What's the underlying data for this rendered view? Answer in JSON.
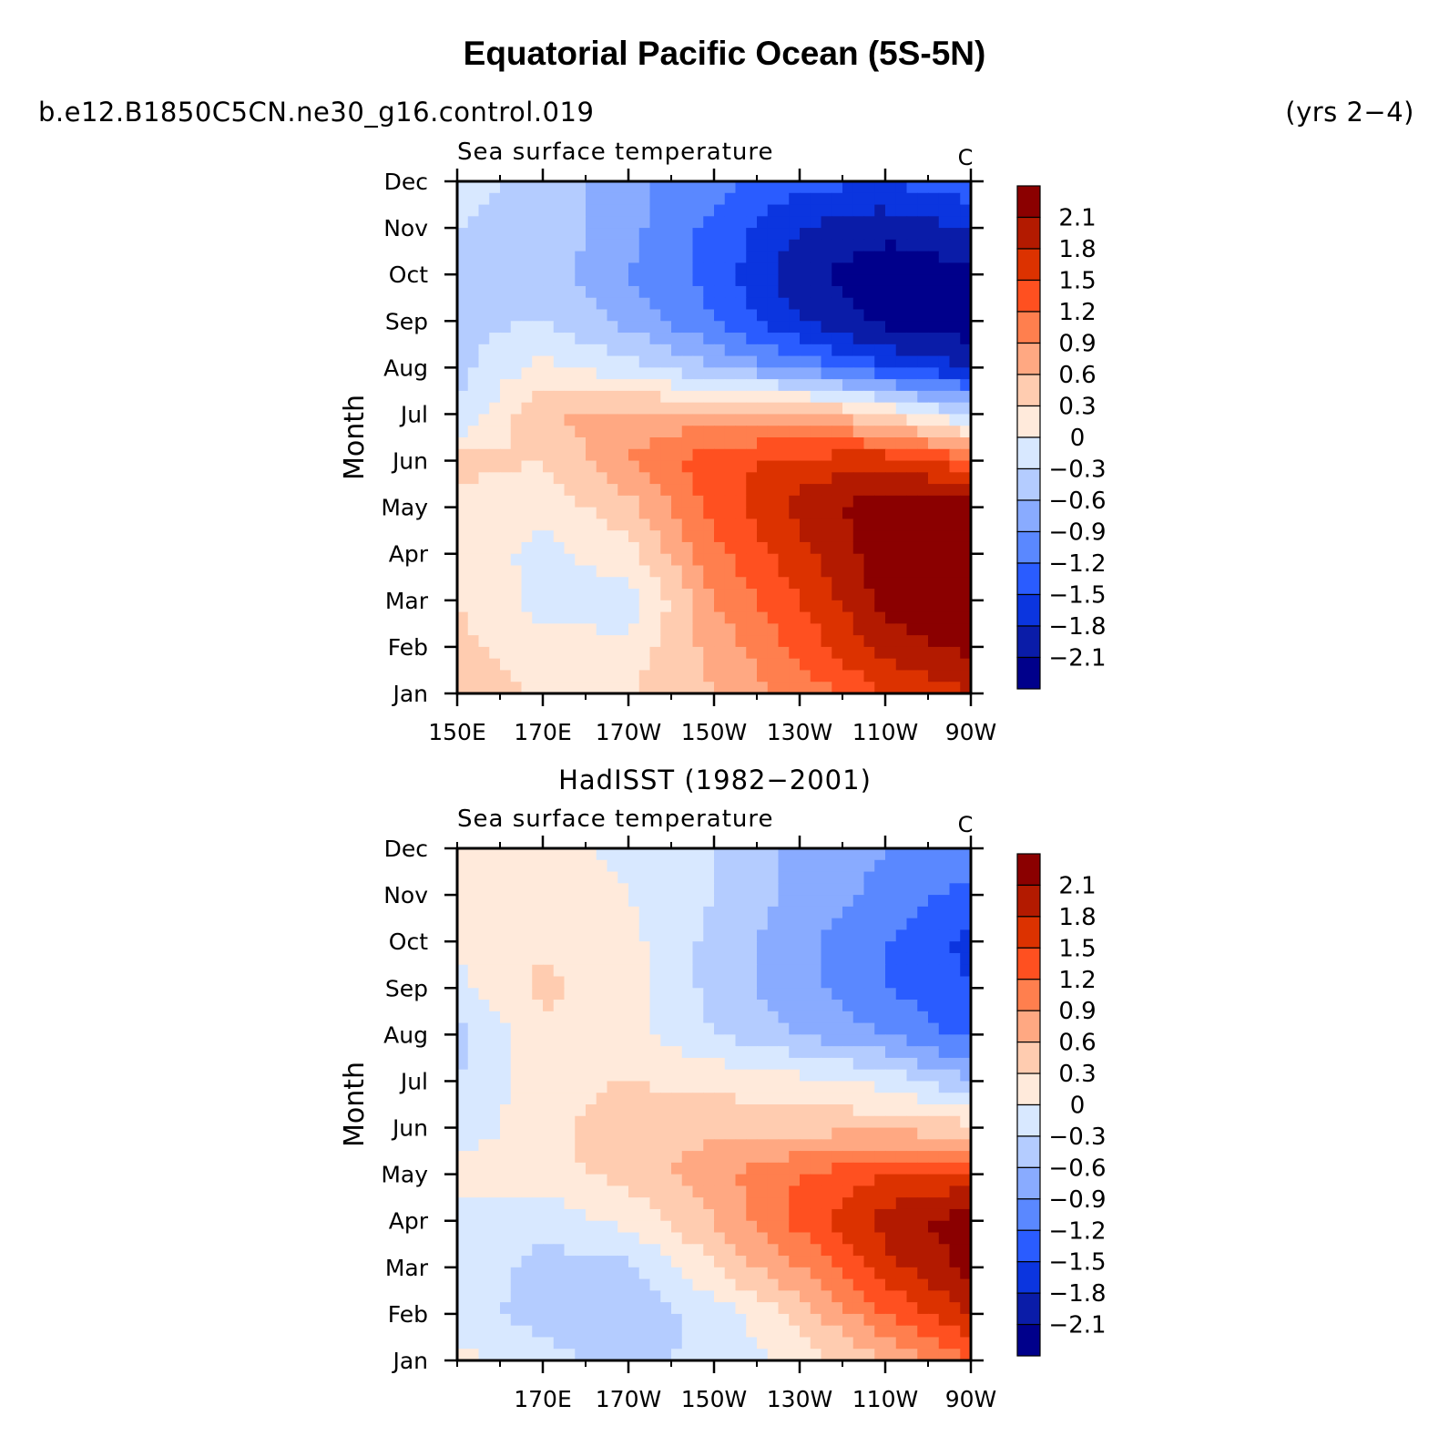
{
  "header": {
    "title": "Equatorial Pacific Ocean (5S-5N)",
    "case_name": "b.e12.B1850C5CN.ne30_g16.control.019",
    "years": "(yrs 2−4)"
  },
  "colorbar": {
    "levels": [
      "2.1",
      "1.8",
      "1.5",
      "1.2",
      "0.9",
      "0.6",
      "0.3",
      "0",
      "−0.3",
      "−0.6",
      "−0.9",
      "−1.2",
      "−1.5",
      "−1.8",
      "−2.1"
    ],
    "colors": [
      "#8b0000",
      "#b31a00",
      "#dc3200",
      "#ff5020",
      "#ff7f4e",
      "#ffa882",
      "#ffccb0",
      "#ffeadb",
      "#d8e8ff",
      "#b4ccff",
      "#89abff",
      "#5a88ff",
      "#2a5cff",
      "#0b35df",
      "#0a1ca8",
      "#00008b"
    ]
  },
  "chart_data": [
    {
      "type": "heatmap",
      "title": "",
      "left_label": "Sea surface temperature",
      "units": "C",
      "xlabel": "",
      "ylabel": "Month",
      "x_ticks": [
        "150E",
        "170E",
        "170W",
        "150W",
        "130W",
        "110W",
        "90W"
      ],
      "x_range_deg_east": [
        150,
        270
      ],
      "y_ticks": [
        "Jan",
        "Feb",
        "Mar",
        "Apr",
        "May",
        "Jun",
        "Jul",
        "Aug",
        "Sep",
        "Oct",
        "Nov",
        "Dec"
      ],
      "x_deg_east": [
        150,
        170,
        190,
        210,
        230,
        250,
        270
      ],
      "grid_values_rows_jan_to_dec": [
        [
          0.4,
          0.3,
          0.3,
          0.6,
          1.0,
          1.5,
          1.8
        ],
        [
          0.4,
          0.1,
          0.1,
          0.7,
          1.3,
          1.9,
          2.2
        ],
        [
          0.3,
          -0.1,
          -0.2,
          0.9,
          1.5,
          2.2,
          2.5
        ],
        [
          0.2,
          -0.1,
          0.2,
          1.1,
          1.7,
          2.3,
          2.5
        ],
        [
          0.2,
          0.1,
          0.5,
          1.3,
          1.9,
          2.3,
          2.3
        ],
        [
          0.4,
          0.3,
          0.9,
          1.4,
          1.6,
          1.7,
          1.3
        ],
        [
          -0.3,
          0.6,
          0.7,
          0.7,
          0.7,
          0.3,
          -0.4
        ],
        [
          -0.4,
          0.1,
          -0.2,
          -0.6,
          -1.0,
          -1.5,
          -1.8
        ],
        [
          -0.4,
          -0.3,
          -0.7,
          -1.2,
          -1.8,
          -2.2,
          -2.3
        ],
        [
          -0.5,
          -0.4,
          -0.9,
          -1.3,
          -2.0,
          -2.3,
          -2.2
        ],
        [
          -0.3,
          -0.4,
          -0.8,
          -1.3,
          -1.8,
          -2.0,
          -1.8
        ],
        [
          -0.2,
          -0.4,
          -0.8,
          -1.1,
          -1.4,
          -1.5,
          -1.3
        ]
      ]
    },
    {
      "type": "heatmap",
      "title": "HadISST (1982−2001)",
      "left_label": "Sea surface temperature",
      "units": "C",
      "xlabel": "",
      "ylabel": "Month",
      "x_ticks": [
        "170E",
        "170W",
        "150W",
        "130W",
        "110W",
        "90W"
      ],
      "x_range_deg_east": [
        150,
        270
      ],
      "y_ticks": [
        "Jan",
        "Feb",
        "Mar",
        "Apr",
        "May",
        "Jun",
        "Jul",
        "Aug",
        "Sep",
        "Oct",
        "Nov",
        "Dec"
      ],
      "x_deg_east": [
        150,
        170,
        190,
        210,
        230,
        250,
        270
      ],
      "grid_values_rows_jan_to_dec": [
        [
          0.1,
          -0.2,
          -0.4,
          -0.2,
          0.1,
          0.6,
          1.2
        ],
        [
          -0.2,
          -0.4,
          -0.5,
          -0.2,
          0.4,
          1.2,
          1.8
        ],
        [
          -0.1,
          -0.4,
          -0.4,
          0.3,
          0.9,
          1.7,
          2.2
        ],
        [
          -0.1,
          -0.2,
          0.1,
          0.6,
          1.3,
          1.9,
          2.3
        ],
        [
          0.1,
          0.2,
          0.4,
          0.8,
          1.2,
          1.5,
          1.6
        ],
        [
          -0.2,
          0.2,
          0.5,
          0.5,
          0.5,
          0.5,
          0.4
        ],
        [
          -0.3,
          0.2,
          0.3,
          0.2,
          0.1,
          -0.1,
          -0.6
        ],
        [
          -0.4,
          0.2,
          0.1,
          -0.3,
          -0.6,
          -0.9,
          -1.3
        ],
        [
          -0.1,
          0.4,
          0.1,
          -0.4,
          -0.8,
          -1.2,
          -1.5
        ],
        [
          0.1,
          0.2,
          0.1,
          -0.4,
          -0.8,
          -1.2,
          -1.6
        ],
        [
          0.1,
          0.2,
          0.0,
          -0.3,
          -0.7,
          -1.0,
          -1.3
        ],
        [
          0.1,
          0.1,
          -0.1,
          -0.3,
          -0.7,
          -0.9,
          -1.0
        ]
      ]
    }
  ]
}
